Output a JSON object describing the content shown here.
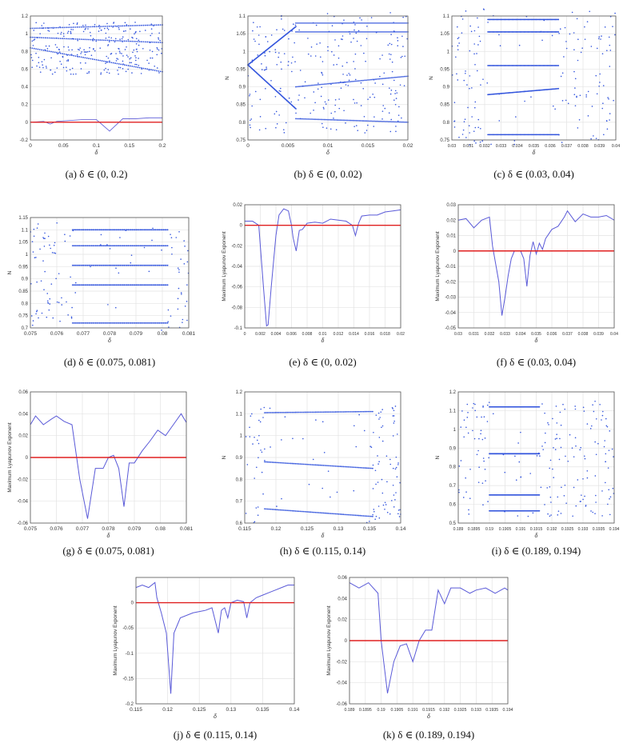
{
  "colors": {
    "points": "#3355dd",
    "line": "#5a5ad8",
    "zero": "#e02020",
    "grid": "#e3e3e3",
    "axis": "#555555",
    "pink": "#e07fa8"
  },
  "chart_data": [
    {
      "id": "a",
      "type": "scatter",
      "caption": "(a)  δ ∈ (0, 0.2)",
      "xlabel": "δ",
      "ylabel": "",
      "xlim": [
        0,
        0.2
      ],
      "ylim": [
        -0.2,
        1.2
      ],
      "xticks": [
        "0",
        "0.05",
        "0.1",
        "0.15",
        "0.2"
      ],
      "xtickvals": [
        0,
        0.05,
        0.1,
        0.15,
        0.2
      ],
      "yticks": [
        "-0.2",
        "0",
        "0.2",
        "0.4",
        "0.6",
        "0.8",
        "1",
        "1.2"
      ],
      "ytickvals": [
        -0.2,
        0,
        0.2,
        0.4,
        0.6,
        0.8,
        1,
        1.2
      ],
      "branches": [
        {
          "x": [
            0,
            0.2
          ],
          "y": [
            1.06,
            1.1
          ]
        },
        {
          "x": [
            0,
            0.2
          ],
          "y": [
            0.96,
            0.9
          ]
        },
        {
          "x": [
            0,
            0.2
          ],
          "y": [
            0.84,
            0.57
          ]
        }
      ],
      "lyap": {
        "x": [
          0,
          0.02,
          0.03,
          0.04,
          0.06,
          0.08,
          0.1,
          0.12,
          0.14,
          0.16,
          0.18,
          0.2
        ],
        "y": [
          0,
          0.01,
          -0.02,
          0.01,
          0.02,
          0.03,
          0.03,
          -0.1,
          0.04,
          0.04,
          0.05,
          0.05
        ]
      },
      "zero": 0
    },
    {
      "id": "b",
      "type": "scatter",
      "caption": "(b)  δ ∈ (0, 0.02)",
      "xlabel": "δ",
      "ylabel": "N",
      "xlim": [
        0,
        0.02
      ],
      "ylim": [
        0.75,
        1.1
      ],
      "xticks": [
        "0",
        "0.005",
        "0.01",
        "0.015",
        "0.02"
      ],
      "xtickvals": [
        0,
        0.005,
        0.01,
        0.015,
        0.02
      ],
      "yticks": [
        "0.75",
        "0.8",
        "0.85",
        "0.9",
        "0.95",
        "1",
        "1.05",
        "1.1"
      ],
      "ytickvals": [
        0.75,
        0.8,
        0.85,
        0.9,
        0.95,
        1,
        1.05,
        1.1
      ],
      "branches": [
        {
          "x": [
            0,
            0.006
          ],
          "y": [
            0.962,
            1.07
          ]
        },
        {
          "x": [
            0,
            0.006
          ],
          "y": [
            0.962,
            0.838
          ]
        },
        {
          "x": [
            0.006,
            0.02
          ],
          "y": [
            1.08,
            1.08
          ]
        },
        {
          "x": [
            0.006,
            0.02
          ],
          "y": [
            1.055,
            1.055
          ]
        },
        {
          "x": [
            0.006,
            0.02
          ],
          "y": [
            0.9,
            0.93
          ]
        },
        {
          "x": [
            0.006,
            0.02
          ],
          "y": [
            0.81,
            0.8
          ]
        }
      ]
    },
    {
      "id": "c",
      "type": "scatter",
      "caption": "(c)  δ ∈ (0.03, 0.04)",
      "xlabel": "δ",
      "ylabel": "N",
      "xlim": [
        0.03,
        0.04
      ],
      "ylim": [
        0.75,
        1.1
      ],
      "xticks": [
        "0.03",
        "0.031",
        "0.032",
        "0.033",
        "0.034",
        "0.035",
        "0.036",
        "0.037",
        "0.038",
        "0.039",
        "0.04"
      ],
      "xtickvals": [
        0.03,
        0.031,
        0.032,
        0.033,
        0.034,
        0.035,
        0.036,
        0.037,
        0.038,
        0.039,
        0.04
      ],
      "yticks": [
        "0.75",
        "0.8",
        "0.85",
        "0.9",
        "0.95",
        "1",
        "1.05",
        "1.1"
      ],
      "ytickvals": [
        0.75,
        0.8,
        0.85,
        0.9,
        0.95,
        1,
        1.05,
        1.1
      ],
      "branches": [
        {
          "x": [
            0.0322,
            0.0365
          ],
          "y": [
            1.09,
            1.09
          ]
        },
        {
          "x": [
            0.0322,
            0.0365
          ],
          "y": [
            1.055,
            1.055
          ]
        },
        {
          "x": [
            0.0322,
            0.0365
          ],
          "y": [
            0.96,
            0.96
          ]
        },
        {
          "x": [
            0.0322,
            0.0365
          ],
          "y": [
            0.878,
            0.895
          ]
        },
        {
          "x": [
            0.0322,
            0.0365
          ],
          "y": [
            0.765,
            0.765
          ]
        }
      ]
    },
    {
      "id": "d",
      "type": "scatter",
      "caption": "(d)  δ ∈ (0.075, 0.081)",
      "xlabel": "δ",
      "ylabel": "N",
      "xlim": [
        0.075,
        0.081
      ],
      "ylim": [
        0.7,
        1.15
      ],
      "xticks": [
        "0.075",
        "0.076",
        "0.077",
        "0.078",
        "0.079",
        "0.08",
        "0.081"
      ],
      "xtickvals": [
        0.075,
        0.076,
        0.077,
        0.078,
        0.079,
        0.08,
        0.081
      ],
      "yticks": [
        "0.7",
        "0.75",
        "0.8",
        "0.85",
        "0.9",
        "0.95",
        "1",
        "1.05",
        "1.1",
        "1.15"
      ],
      "ytickvals": [
        0.7,
        0.75,
        0.8,
        0.85,
        0.9,
        0.95,
        1,
        1.05,
        1.1,
        1.15
      ],
      "branches": [
        {
          "x": [
            0.0766,
            0.0802
          ],
          "y": [
            1.1,
            1.1
          ]
        },
        {
          "x": [
            0.0766,
            0.0802
          ],
          "y": [
            1.035,
            1.035
          ]
        },
        {
          "x": [
            0.0766,
            0.0802
          ],
          "y": [
            0.955,
            0.955
          ]
        },
        {
          "x": [
            0.0766,
            0.0802
          ],
          "y": [
            0.875,
            0.875
          ]
        },
        {
          "x": [
            0.0766,
            0.0802
          ],
          "y": [
            0.72,
            0.72
          ]
        }
      ]
    },
    {
      "id": "e",
      "type": "line",
      "caption": "(e)  δ ∈ (0, 0.02)",
      "xlabel": "δ",
      "ylabel": "Maximum Lyapunov Exponent",
      "xlim": [
        0,
        0.02
      ],
      "ylim": [
        -0.1,
        0.02
      ],
      "xticks": [
        "0",
        "0.002",
        "0.004",
        "0.006",
        "0.008",
        "0.01",
        "0.012",
        "0.014",
        "0.016",
        "0.018",
        "0.02"
      ],
      "xtickvals": [
        0,
        0.002,
        0.004,
        0.006,
        0.008,
        0.01,
        0.012,
        0.014,
        0.016,
        0.018,
        0.02
      ],
      "yticks": [
        "-0.1",
        "-0.08",
        "-0.06",
        "-0.04",
        "-0.02",
        "0",
        "0.02"
      ],
      "ytickvals": [
        -0.1,
        -0.08,
        -0.06,
        -0.04,
        -0.02,
        0,
        0.02
      ],
      "x": [
        0,
        0.001,
        0.0018,
        0.0024,
        0.0028,
        0.003,
        0.0034,
        0.004,
        0.0044,
        0.005,
        0.0056,
        0.006,
        0.0062,
        0.0066,
        0.0068,
        0.007,
        0.0074,
        0.008,
        0.009,
        0.01,
        0.011,
        0.012,
        0.013,
        0.0138,
        0.0142,
        0.0146,
        0.015,
        0.016,
        0.017,
        0.018,
        0.019,
        0.02
      ],
      "y": [
        0.004,
        0.004,
        0.0,
        -0.06,
        -0.098,
        -0.097,
        -0.06,
        -0.01,
        0.01,
        0.016,
        0.014,
        0.0,
        -0.012,
        -0.025,
        -0.015,
        -0.005,
        -0.004,
        0.002,
        0.003,
        0.002,
        0.006,
        0.005,
        0.004,
        0.0,
        -0.01,
        0.002,
        0.009,
        0.01,
        0.01,
        0.013,
        0.014,
        0.015
      ],
      "zero": 0
    },
    {
      "id": "f",
      "type": "line",
      "caption": "(f)  δ ∈ (0.03, 0.04)",
      "xlabel": "δ",
      "ylabel": "Maximum Lyapunov Exponent",
      "xlim": [
        0.03,
        0.04
      ],
      "ylim": [
        -0.05,
        0.03
      ],
      "xticks": [
        "0.03",
        "0.031",
        "0.032",
        "0.033",
        "0.034",
        "0.035",
        "0.036",
        "0.037",
        "0.038",
        "0.039",
        "0.04"
      ],
      "xtickvals": [
        0.03,
        0.031,
        0.032,
        0.033,
        0.034,
        0.035,
        0.036,
        0.037,
        0.038,
        0.039,
        0.04
      ],
      "yticks": [
        "-0.05",
        "-0.04",
        "-0.03",
        "-0.02",
        "-0.01",
        "0",
        "0.01",
        "0.02",
        "0.03"
      ],
      "ytickvals": [
        -0.05,
        -0.04,
        -0.03,
        -0.02,
        -0.01,
        0,
        0.01,
        0.02,
        0.03
      ],
      "x": [
        0.03,
        0.0305,
        0.031,
        0.0315,
        0.032,
        0.0322,
        0.0326,
        0.0328,
        0.033,
        0.0332,
        0.0334,
        0.0336,
        0.034,
        0.0342,
        0.0344,
        0.0346,
        0.0348,
        0.035,
        0.0352,
        0.0354,
        0.0356,
        0.036,
        0.0364,
        0.0368,
        0.037,
        0.0375,
        0.038,
        0.0385,
        0.039,
        0.0395,
        0.04
      ],
      "y": [
        0.02,
        0.021,
        0.015,
        0.02,
        0.022,
        0.003,
        -0.02,
        -0.042,
        -0.03,
        -0.016,
        -0.005,
        0.0,
        0.0,
        -0.005,
        -0.023,
        -0.003,
        0.006,
        -0.002,
        0.005,
        0.001,
        0.008,
        0.014,
        0.016,
        0.022,
        0.026,
        0.019,
        0.024,
        0.022,
        0.022,
        0.023,
        0.02
      ],
      "zero": 0
    },
    {
      "id": "g",
      "type": "line",
      "caption": "(g)  δ ∈ (0.075, 0.081)",
      "xlabel": "δ",
      "ylabel": "Maximum Lyapunov Exponent",
      "xlim": [
        0.075,
        0.081
      ],
      "ylim": [
        -0.06,
        0.06
      ],
      "xticks": [
        "0.075",
        "0.076",
        "0.077",
        "0.078",
        "0.079",
        "0.08",
        "0.081"
      ],
      "xtickvals": [
        0.075,
        0.076,
        0.077,
        0.078,
        0.079,
        0.08,
        0.081
      ],
      "yticks": [
        "-0.06",
        "-0.04",
        "-0.02",
        "0",
        "0.02",
        "0.04",
        "0.06"
      ],
      "ytickvals": [
        -0.06,
        -0.04,
        -0.02,
        0,
        0.02,
        0.04,
        0.06
      ],
      "x": [
        0.075,
        0.0752,
        0.0755,
        0.0758,
        0.076,
        0.0763,
        0.0766,
        0.0769,
        0.0772,
        0.0775,
        0.0778,
        0.078,
        0.0782,
        0.0784,
        0.0786,
        0.0788,
        0.079,
        0.0793,
        0.0796,
        0.0799,
        0.0802,
        0.0805,
        0.0808,
        0.081
      ],
      "y": [
        0.03,
        0.038,
        0.03,
        0.035,
        0.038,
        0.033,
        0.03,
        -0.02,
        -0.056,
        -0.01,
        -0.01,
        0.0,
        0.002,
        -0.01,
        -0.045,
        -0.005,
        -0.005,
        0.006,
        0.015,
        0.025,
        0.02,
        0.03,
        0.04,
        0.032
      ],
      "zero": 0
    },
    {
      "id": "h",
      "type": "scatter",
      "caption": "(h)  δ ∈ (0.115, 0.14)",
      "xlabel": "δ",
      "ylabel": "N",
      "xlim": [
        0.115,
        0.14
      ],
      "ylim": [
        0.6,
        1.2
      ],
      "xticks": [
        "0.115",
        "0.12",
        "0.125",
        "0.13",
        "0.135",
        "0.14"
      ],
      "xtickvals": [
        0.115,
        0.12,
        0.125,
        0.13,
        0.135,
        0.14
      ],
      "yticks": [
        "0.6",
        "0.7",
        "0.8",
        "0.9",
        "1",
        "1.1",
        "1.2"
      ],
      "ytickvals": [
        0.6,
        0.7,
        0.8,
        0.9,
        1,
        1.1,
        1.2
      ],
      "branches": [
        {
          "x": [
            0.1182,
            0.1355
          ],
          "y": [
            1.105,
            1.11
          ]
        },
        {
          "x": [
            0.1182,
            0.1355
          ],
          "y": [
            0.88,
            0.85
          ]
        },
        {
          "x": [
            0.1182,
            0.1355
          ],
          "y": [
            0.665,
            0.63
          ]
        }
      ]
    },
    {
      "id": "i",
      "type": "scatter",
      "caption": "(i)  δ ∈ (0.189, 0.194)",
      "xlabel": "δ",
      "ylabel": "N",
      "xlim": [
        0.189,
        0.194
      ],
      "ylim": [
        0.5,
        1.2
      ],
      "xticks": [
        "0.189",
        "0.1895",
        "0.19",
        "0.1905",
        "0.191",
        "0.1915",
        "0.192",
        "0.1925",
        "0.193",
        "0.1935",
        "0.194"
      ],
      "xtickvals": [
        0.189,
        0.1895,
        0.19,
        0.1905,
        0.191,
        0.1915,
        0.192,
        0.1925,
        0.193,
        0.1935,
        0.194
      ],
      "yticks": [
        "0.5",
        "0.6",
        "0.7",
        "0.8",
        "0.9",
        "1",
        "1.1",
        "1.2"
      ],
      "ytickvals": [
        0.5,
        0.6,
        0.7,
        0.8,
        0.9,
        1,
        1.1,
        1.2
      ],
      "branches": [
        {
          "x": [
            0.19,
            0.1916
          ],
          "y": [
            1.12,
            1.12
          ]
        },
        {
          "x": [
            0.19,
            0.1916
          ],
          "y": [
            0.87,
            0.87
          ]
        },
        {
          "x": [
            0.19,
            0.1916
          ],
          "y": [
            0.65,
            0.65
          ]
        },
        {
          "x": [
            0.19,
            0.1916
          ],
          "y": [
            0.565,
            0.565
          ]
        }
      ]
    },
    {
      "id": "j",
      "type": "line",
      "caption": "(j)  δ ∈ (0.115, 0.14)",
      "xlabel": "δ",
      "ylabel": "Maximum Lyapunov Exponent",
      "xlim": [
        0.115,
        0.14
      ],
      "ylim": [
        -0.2,
        0.05
      ],
      "xticks": [
        "0.115",
        "0.12",
        "0.125",
        "0.13",
        "0.135",
        "0.14"
      ],
      "xtickvals": [
        0.115,
        0.12,
        0.125,
        0.13,
        0.135,
        0.14
      ],
      "yticks": [
        "-0.2",
        "-0.15",
        "-0.1",
        "-0.05",
        "0"
      ],
      "ytickvals": [
        -0.2,
        -0.15,
        -0.1,
        -0.05,
        0
      ],
      "x": [
        0.115,
        0.116,
        0.117,
        0.118,
        0.1183,
        0.119,
        0.1198,
        0.1205,
        0.121,
        0.122,
        0.124,
        0.126,
        0.127,
        0.128,
        0.1285,
        0.129,
        0.1295,
        0.13,
        0.131,
        0.132,
        0.1325,
        0.133,
        0.134,
        0.135,
        0.136,
        0.137,
        0.138,
        0.139,
        0.14
      ],
      "y": [
        0.03,
        0.035,
        0.03,
        0.04,
        0.01,
        -0.02,
        -0.06,
        -0.18,
        -0.06,
        -0.03,
        -0.02,
        -0.015,
        -0.01,
        -0.06,
        -0.015,
        -0.01,
        -0.03,
        0.0,
        0.005,
        0.002,
        -0.03,
        0.0,
        0.01,
        0.015,
        0.02,
        0.025,
        0.03,
        0.035,
        0.035
      ],
      "zero": 0
    },
    {
      "id": "k",
      "type": "line",
      "caption": "(k)  δ ∈ (0.189, 0.194)",
      "xlabel": "δ",
      "ylabel": "Maximum Lyapunov Exponent",
      "xlim": [
        0.189,
        0.194
      ],
      "ylim": [
        -0.06,
        0.06
      ],
      "xticks": [
        "0.189",
        "0.1895",
        "0.19",
        "0.1905",
        "0.191",
        "0.1915",
        "0.192",
        "0.1925",
        "0.193",
        "0.1935",
        "0.194"
      ],
      "xtickvals": [
        0.189,
        0.1895,
        0.19,
        0.1905,
        0.191,
        0.1915,
        0.192,
        0.1925,
        0.193,
        0.1935,
        0.194
      ],
      "yticks": [
        "-0.06",
        "-0.04",
        "-0.02",
        "0",
        "0.02",
        "0.04",
        "0.06"
      ],
      "ytickvals": [
        -0.06,
        -0.04,
        -0.02,
        0,
        0.02,
        0.04,
        0.06
      ],
      "x": [
        0.189,
        0.1893,
        0.1896,
        0.1899,
        0.19,
        0.1902,
        0.1904,
        0.1906,
        0.1908,
        0.191,
        0.1912,
        0.1914,
        0.1916,
        0.1918,
        0.192,
        0.1922,
        0.1925,
        0.1928,
        0.193,
        0.1933,
        0.1936,
        0.1939,
        0.194
      ],
      "y": [
        0.055,
        0.05,
        0.055,
        0.045,
        0.0,
        -0.05,
        -0.02,
        -0.005,
        -0.003,
        -0.02,
        0.0,
        0.01,
        0.01,
        0.048,
        0.035,
        0.05,
        0.05,
        0.045,
        0.048,
        0.05,
        0.045,
        0.05,
        0.048
      ],
      "zero": 0
    }
  ]
}
